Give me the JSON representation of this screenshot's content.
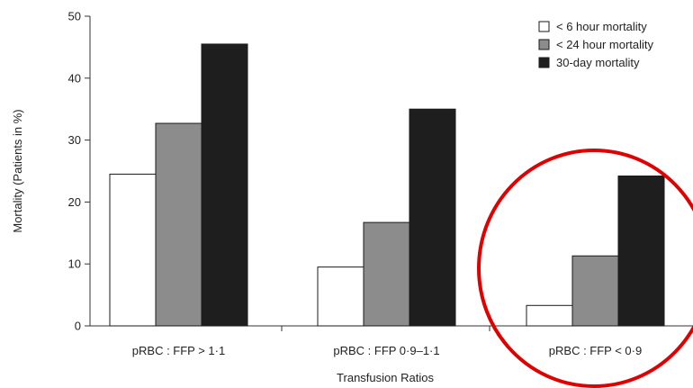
{
  "chart_data": {
    "type": "bar",
    "title": "",
    "xlabel": "Transfusion Ratios",
    "ylabel": "Mortality (Patients in %)",
    "ylim": [
      0,
      50
    ],
    "yticks": [
      "0",
      "10",
      "20",
      "30",
      "40",
      "50"
    ],
    "categories": [
      "pRBC : FFP > 1·1",
      "pRBC : FFP 0·9–1·1",
      "pRBC : FFP < 0·9"
    ],
    "series": [
      {
        "name": "< 6 hour mortality",
        "color": "#ffffff",
        "values": [
          24.5,
          9.5,
          3.3
        ]
      },
      {
        "name": "< 24 hour mortality",
        "color": "#8c8c8c",
        "values": [
          32.7,
          16.7,
          11.3
        ]
      },
      {
        "name": "30-day mortality",
        "color": "#1e1e1e",
        "values": [
          45.5,
          35.0,
          24.2
        ]
      }
    ],
    "legend_position": "top-right",
    "grid": false,
    "annotation": {
      "shape": "circle",
      "color": "#e00000",
      "highlights": "pRBC : FFP < 0·9"
    }
  }
}
